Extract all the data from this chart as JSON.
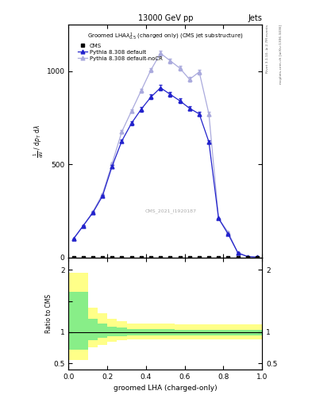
{
  "title_top": "13000 GeV pp",
  "title_right": "Jets",
  "plot_title": "Groomed LHA$\\lambda^1_{0.5}$ (charged only) (CMS jet substructure)",
  "watermark": "CMS_2021_I1920187",
  "right_label_top": "Rivet 3.1.10, ≥ 2.7M events",
  "right_label_bot": "mcplots.cern.ch [arXiv:1306.3436]",
  "xlabel": "groomed LHA (charged-only)",
  "ylabel_ratio": "Ratio to CMS",
  "cms_x": [
    0.025,
    0.075,
    0.125,
    0.175,
    0.225,
    0.275,
    0.325,
    0.375,
    0.425,
    0.475,
    0.525,
    0.575,
    0.625,
    0.675,
    0.725,
    0.775,
    0.825,
    0.875,
    0.925,
    0.975
  ],
  "cms_y": [
    0,
    0,
    0,
    0,
    0,
    0,
    0,
    0,
    0,
    0,
    0,
    0,
    0,
    0,
    0,
    0,
    0,
    0,
    0,
    0
  ],
  "pythia_default_x": [
    0.025,
    0.075,
    0.125,
    0.175,
    0.225,
    0.275,
    0.325,
    0.375,
    0.425,
    0.475,
    0.525,
    0.575,
    0.625,
    0.675,
    0.725,
    0.775,
    0.825,
    0.875,
    0.925,
    0.975
  ],
  "pythia_default_y": [
    100,
    170,
    240,
    330,
    490,
    625,
    720,
    795,
    860,
    910,
    875,
    840,
    800,
    770,
    620,
    210,
    125,
    25,
    5,
    2
  ],
  "pythia_nocr_x": [
    0.025,
    0.075,
    0.125,
    0.175,
    0.225,
    0.275,
    0.325,
    0.375,
    0.425,
    0.475,
    0.525,
    0.575,
    0.625,
    0.675,
    0.725,
    0.775,
    0.825,
    0.875,
    0.925,
    0.975
  ],
  "pythia_nocr_y": [
    100,
    170,
    245,
    340,
    505,
    675,
    785,
    895,
    1005,
    1095,
    1055,
    1015,
    955,
    995,
    770,
    210,
    135,
    25,
    5,
    2
  ],
  "pythia_default_color": "#2222cc",
  "pythia_nocr_color": "#aaaadd",
  "cms_color": "black",
  "ratio_yellow_edges": [
    0.0,
    0.05,
    0.1,
    0.15,
    0.2,
    0.25,
    0.3,
    0.35,
    0.4,
    0.45,
    0.5,
    0.55,
    0.6,
    0.65,
    0.7,
    0.75,
    0.8,
    0.85,
    0.9,
    0.95,
    1.0
  ],
  "ratio_yellow_lo": [
    0.55,
    0.55,
    0.75,
    0.8,
    0.84,
    0.87,
    0.88,
    0.88,
    0.88,
    0.88,
    0.88,
    0.88,
    0.88,
    0.88,
    0.88,
    0.88,
    0.88,
    0.88,
    0.88,
    0.88
  ],
  "ratio_yellow_hi": [
    1.95,
    1.95,
    1.4,
    1.3,
    1.22,
    1.18,
    1.14,
    1.14,
    1.14,
    1.14,
    1.14,
    1.12,
    1.12,
    1.12,
    1.12,
    1.12,
    1.12,
    1.12,
    1.12,
    1.12
  ],
  "ratio_green_lo": [
    0.72,
    0.72,
    0.87,
    0.91,
    0.93,
    0.94,
    0.95,
    0.95,
    0.95,
    0.95,
    0.95,
    0.95,
    0.95,
    0.95,
    0.95,
    0.95,
    0.95,
    0.95,
    0.95,
    0.95
  ],
  "ratio_green_hi": [
    1.65,
    1.65,
    1.22,
    1.14,
    1.09,
    1.07,
    1.05,
    1.05,
    1.05,
    1.05,
    1.05,
    1.04,
    1.04,
    1.04,
    1.04,
    1.04,
    1.04,
    1.04,
    1.04,
    1.04
  ],
  "ylim_main": [
    0,
    1250
  ],
  "ylim_ratio": [
    0.4,
    2.2
  ],
  "xlim": [
    0,
    1.0
  ],
  "yticks_main": [
    0,
    500,
    1000
  ],
  "yticks_ratio": [
    0.5,
    1.0,
    1.5,
    2.0
  ],
  "xticks": [
    0.0,
    0.2,
    0.4,
    0.6,
    0.8,
    1.0
  ]
}
